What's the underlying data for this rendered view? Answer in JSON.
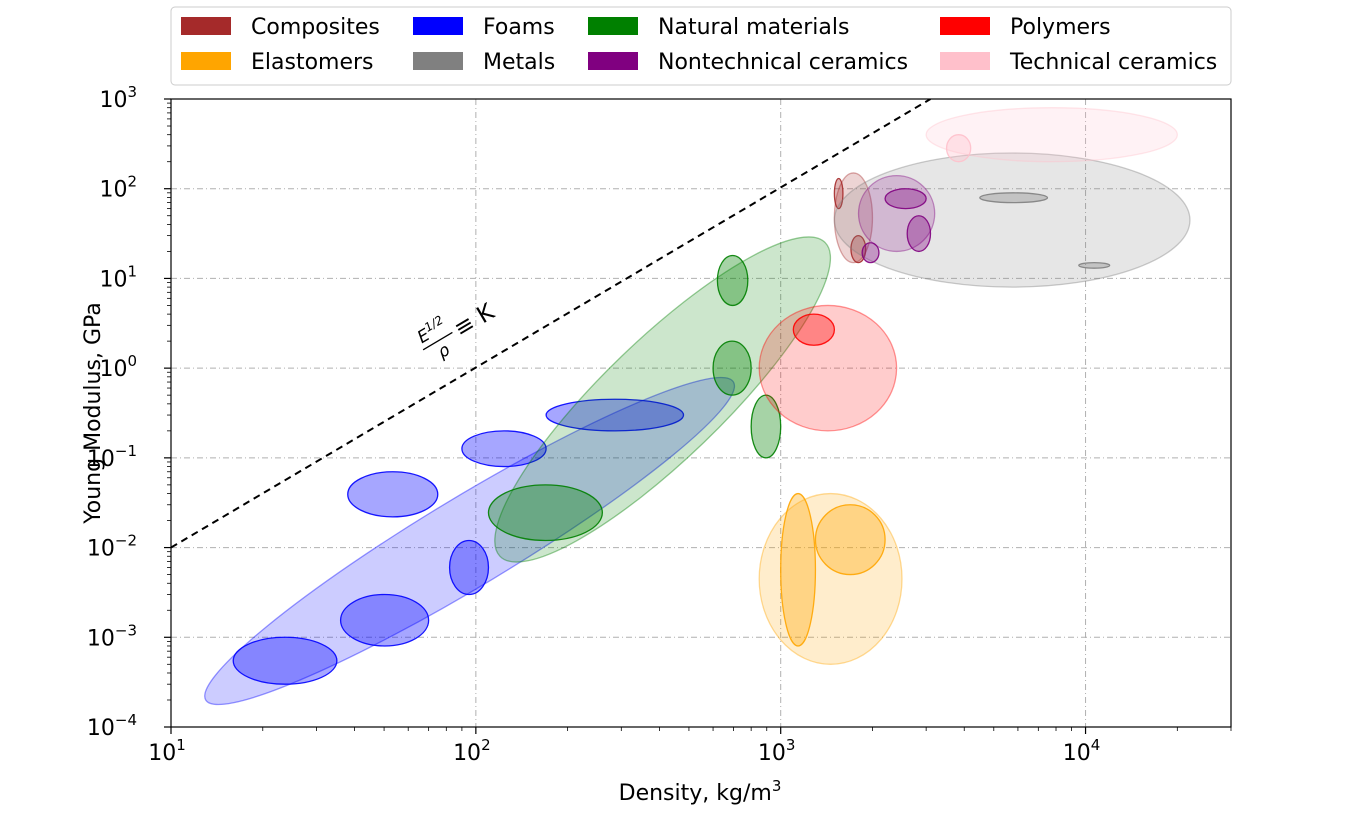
{
  "chart_data": {
    "type": "area",
    "title": "",
    "xlabel": "Density, kg/m",
    "xlabel_sup": "3",
    "ylabel": "Young Modulus, GPa",
    "xscale": "log",
    "yscale": "log",
    "xlim": [
      10,
      30000
    ],
    "ylim": [
      0.0001,
      1000
    ],
    "grid": true,
    "legend_position": "top",
    "x_ticks": [
      {
        "value": 10,
        "base": "10",
        "exp": "1"
      },
      {
        "value": 100,
        "base": "10",
        "exp": "2"
      },
      {
        "value": 1000,
        "base": "10",
        "exp": "3"
      },
      {
        "value": 10000,
        "base": "10",
        "exp": "4"
      }
    ],
    "y_ticks": [
      {
        "value": 0.0001,
        "base": "10",
        "exp": "−4"
      },
      {
        "value": 0.001,
        "base": "10",
        "exp": "−3"
      },
      {
        "value": 0.01,
        "base": "10",
        "exp": "−2"
      },
      {
        "value": 0.1,
        "base": "10",
        "exp": "−1"
      },
      {
        "value": 1,
        "base": "10",
        "exp": "0"
      },
      {
        "value": 10,
        "base": "10",
        "exp": "1"
      },
      {
        "value": 100,
        "base": "10",
        "exp": "2"
      },
      {
        "value": 1000,
        "base": "10",
        "exp": "3"
      }
    ],
    "guide_line": {
      "points": [
        [
          10,
          0.01
        ],
        [
          3100,
          1000
        ]
      ],
      "style": "dashed",
      "color": "#000000"
    },
    "guide_annotation": {
      "numerator": "E",
      "numerator_sup": "1/2",
      "denominator": "ρ",
      "relation": "≡ K",
      "at": [
        75,
        2
      ]
    },
    "legend": [
      {
        "name": "Composites",
        "color": "#a52a2a"
      },
      {
        "name": "Foams",
        "color": "#0000ff"
      },
      {
        "name": "Natural materials",
        "color": "#008000"
      },
      {
        "name": "Polymers",
        "color": "#ff0000"
      },
      {
        "name": "Elastomers",
        "color": "#ffa500"
      },
      {
        "name": "Metals",
        "color": "#808080"
      },
      {
        "name": "Nontechnical ceramics",
        "color": "#800080"
      },
      {
        "name": "Technical ceramics",
        "color": "#ffc0cb"
      }
    ],
    "series": [
      {
        "family": "Foams",
        "color": "#0000ff",
        "envelope": {
          "x": [
            13,
            700
          ],
          "y": [
            0.0002,
            0.7
          ]
        },
        "regions": [
          {
            "x": [
              16,
              35
            ],
            "y": [
              0.0003,
              0.001
            ]
          },
          {
            "x": [
              36,
              70
            ],
            "y": [
              0.0008,
              0.003
            ]
          },
          {
            "x": [
              82,
              110
            ],
            "y": [
              0.003,
              0.012
            ]
          },
          {
            "x": [
              38,
              75
            ],
            "y": [
              0.022,
              0.07
            ]
          },
          {
            "x": [
              90,
              170
            ],
            "y": [
              0.08,
              0.2
            ]
          },
          {
            "x": [
              170,
              480
            ],
            "y": [
              0.2,
              0.45
            ]
          }
        ]
      },
      {
        "family": "Natural materials",
        "color": "#008000",
        "envelope": {
          "x": [
            120,
            1400
          ],
          "y": [
            0.008,
            25
          ]
        },
        "regions": [
          {
            "x": [
              110,
              260
            ],
            "y": [
              0.012,
              0.05
            ]
          },
          {
            "x": [
              600,
              800
            ],
            "y": [
              0.5,
              2
            ]
          },
          {
            "x": [
              620,
              780
            ],
            "y": [
              5,
              18
            ]
          },
          {
            "x": [
              800,
              1000
            ],
            "y": [
              0.1,
              0.5
            ]
          }
        ]
      },
      {
        "family": "Elastomers",
        "color": "#ffa500",
        "envelope": {
          "x": [
            850,
            2500
          ],
          "y": [
            0.0005,
            0.04
          ]
        },
        "regions": [
          {
            "x": [
              1000,
              1300
            ],
            "y": [
              0.0008,
              0.04
            ]
          },
          {
            "x": [
              1300,
              2200
            ],
            "y": [
              0.005,
              0.03
            ]
          }
        ]
      },
      {
        "family": "Polymers",
        "color": "#ff0000",
        "envelope": {
          "x": [
            850,
            2400
          ],
          "y": [
            0.2,
            5
          ]
        },
        "regions": [
          {
            "x": [
              1100,
              1500
            ],
            "y": [
              1.8,
              4
            ]
          }
        ]
      },
      {
        "family": "Composites",
        "color": "#a52a2a",
        "envelope": {
          "x": [
            1500,
            2000
          ],
          "y": [
            15,
            150
          ]
        },
        "regions": [
          {
            "x": [
              1500,
              1600
            ],
            "y": [
              60,
              130
            ]
          },
          {
            "x": [
              1700,
              1900
            ],
            "y": [
              15,
              30
            ]
          }
        ]
      },
      {
        "family": "Metals",
        "color": "#808080",
        "envelope": {
          "x": [
            1500,
            22000
          ],
          "y": [
            8,
            250
          ]
        },
        "regions": [
          {
            "x": [
              4500,
              7500
            ],
            "y": [
              70,
              90
            ]
          },
          {
            "x": [
              9500,
              12000
            ],
            "y": [
              13,
              15
            ]
          }
        ]
      },
      {
        "family": "Nontechnical ceramics",
        "color": "#800080",
        "envelope": {
          "x": [
            1800,
            3200
          ],
          "y": [
            20,
            140
          ]
        },
        "regions": [
          {
            "x": [
              2200,
              3000
            ],
            "y": [
              60,
              100
            ]
          },
          {
            "x": [
              2600,
              3100
            ],
            "y": [
              20,
              50
            ]
          },
          {
            "x": [
              1850,
              2100
            ],
            "y": [
              15,
              25
            ]
          }
        ]
      },
      {
        "family": "Technical ceramics",
        "color": "#ffc0cb",
        "envelope": {
          "x": [
            3000,
            20000
          ],
          "y": [
            200,
            800
          ]
        },
        "regions": [
          {
            "x": [
              3500,
              4200
            ],
            "y": [
              200,
              400
            ]
          }
        ]
      }
    ]
  }
}
